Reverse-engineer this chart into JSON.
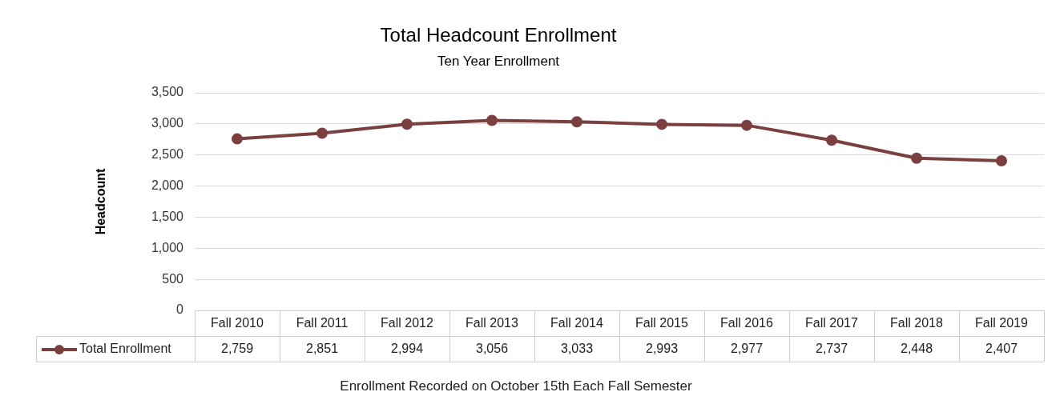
{
  "chart_data": {
    "type": "line",
    "title": "Total Headcount Enrollment",
    "subtitle": "Ten Year Enrollment",
    "ylabel": "Headcount",
    "categories": [
      "Fall 2010",
      "Fall 2011",
      "Fall 2012",
      "Fall 2013",
      "Fall 2014",
      "Fall 2015",
      "Fall 2016",
      "Fall 2017",
      "Fall 2018",
      "Fall 2019"
    ],
    "series": [
      {
        "name": "Total Enrollment",
        "color": "#7b3f3f",
        "values": [
          2759,
          2851,
          2994,
          3056,
          3033,
          2993,
          2977,
          2737,
          2448,
          2407
        ],
        "value_labels": [
          "2,759",
          "2,851",
          "2,994",
          "3,056",
          "3,033",
          "2,993",
          "2,977",
          "2,737",
          "2,448",
          "2,407"
        ]
      }
    ],
    "ylim": [
      0,
      3500
    ],
    "yticks": [
      {
        "value": 0,
        "label": "0"
      },
      {
        "value": 500,
        "label": "500"
      },
      {
        "value": 1000,
        "label": "1,000"
      },
      {
        "value": 1500,
        "label": "1,500"
      },
      {
        "value": 2000,
        "label": "2,000"
      },
      {
        "value": 2500,
        "label": "2,500"
      },
      {
        "value": 3000,
        "label": "3,000"
      },
      {
        "value": 3500,
        "label": "3,500"
      }
    ],
    "grid": "y",
    "marker": "circle",
    "line_style": "solid",
    "legend": "bottom left",
    "annotations": [
      "Enrollment Recorded on October 15th Each Fall Semester"
    ]
  }
}
